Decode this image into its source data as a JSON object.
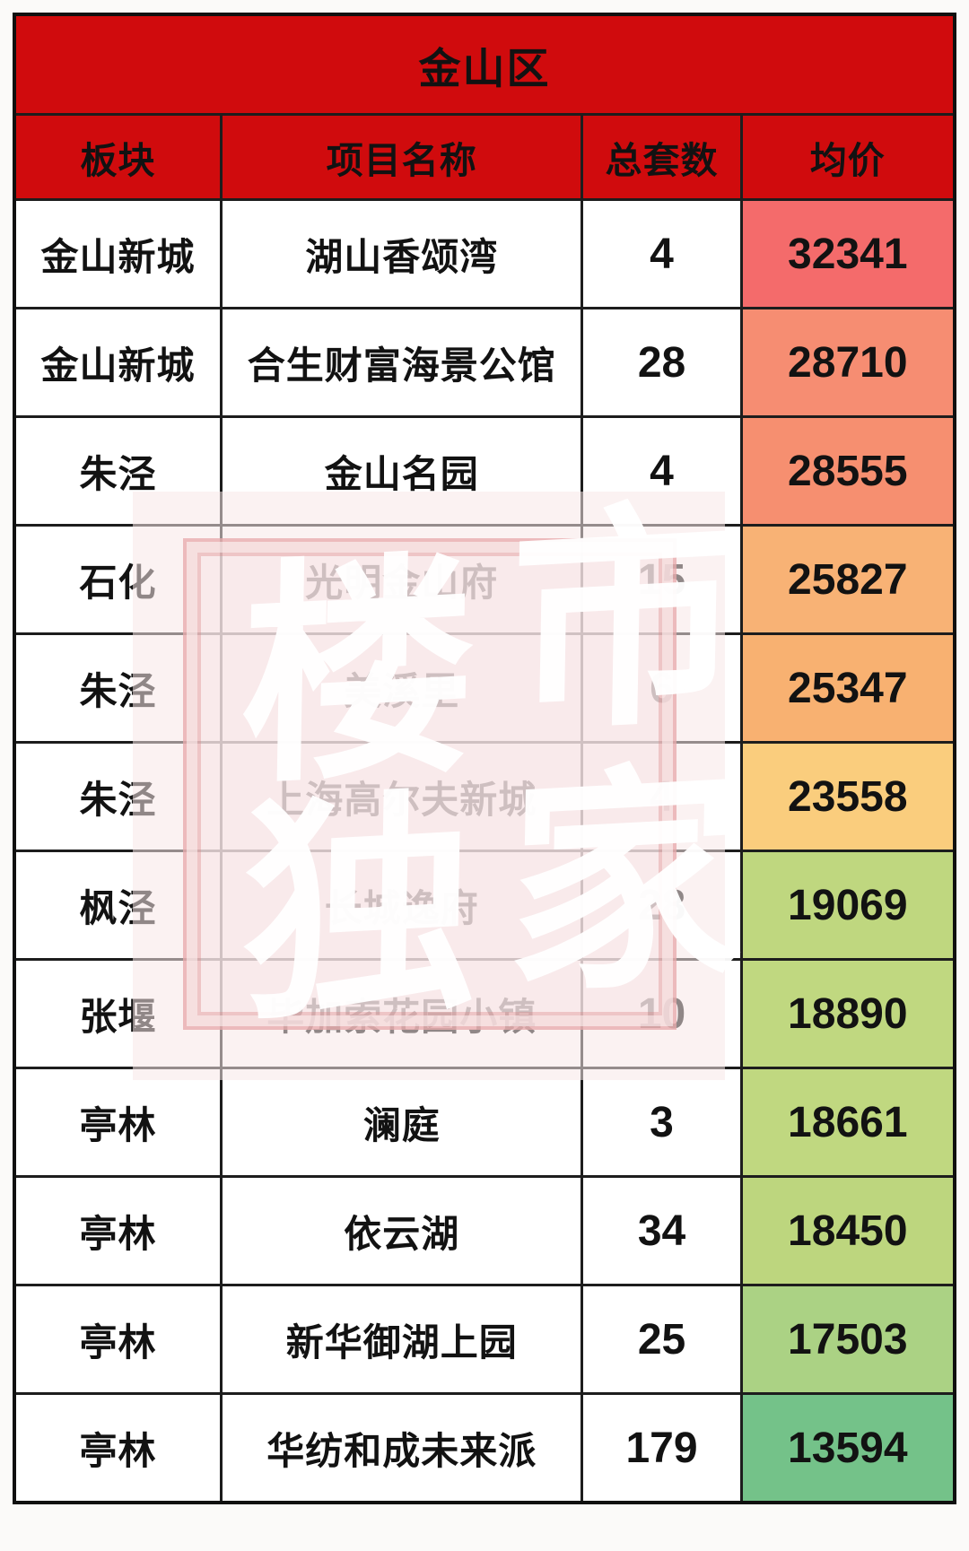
{
  "chart_data": {
    "type": "table",
    "title": "金山区",
    "columns": [
      "板块",
      "项目名称",
      "总套数",
      "均价"
    ],
    "rows": [
      {
        "area": "金山新城",
        "project": "湖山香颂湾",
        "units": "4",
        "price": "32341",
        "price_color": "#f46b6b"
      },
      {
        "area": "金山新城",
        "project": "合生财富海景公馆",
        "units": "28",
        "price": "28710",
        "price_color": "#f68d72"
      },
      {
        "area": "朱泾",
        "project": "金山名园",
        "units": "4",
        "price": "28555",
        "price_color": "#f68f70"
      },
      {
        "area": "石化",
        "project": "光明金山府",
        "units": "15",
        "price": "25827",
        "price_color": "#f8b275"
      },
      {
        "area": "朱泾",
        "project": "美溪里",
        "units": "6",
        "price": "25347",
        "price_color": "#f8b171"
      },
      {
        "area": "朱泾",
        "project": "上海高尔夫新城",
        "units": "4",
        "price": "23558",
        "price_color": "#facd7d"
      },
      {
        "area": "枫泾",
        "project": "长城逸府",
        "units": "28",
        "price": "19069",
        "price_color": "#bfd77f"
      },
      {
        "area": "张堰",
        "project": "毕加索花园小镇",
        "units": "10",
        "price": "18890",
        "price_color": "#c0d880"
      },
      {
        "area": "亭林",
        "project": "澜庭",
        "units": "3",
        "price": "18661",
        "price_color": "#c0d880"
      },
      {
        "area": "亭林",
        "project": "依云湖",
        "units": "34",
        "price": "18450",
        "price_color": "#bdd67e"
      },
      {
        "area": "亭林",
        "project": "新华御湖上园",
        "units": "25",
        "price": "17503",
        "price_color": "#abd284"
      },
      {
        "area": "亭林",
        "project": "华纺和成未来派",
        "units": "179",
        "price": "13594",
        "price_color": "#74c289"
      }
    ],
    "layout_hints": {
      "grid": "on",
      "price_scale": "red(high)-to-green(low)"
    }
  },
  "colors": {
    "header_red": "#d00b0d",
    "grid_border": "#1d1d1d",
    "cell_text": "#121212",
    "price_high": "#f46b6b",
    "price_low": "#74c289"
  },
  "watermark": {
    "chars": [
      "楼",
      "市",
      "独",
      "家"
    ]
  }
}
